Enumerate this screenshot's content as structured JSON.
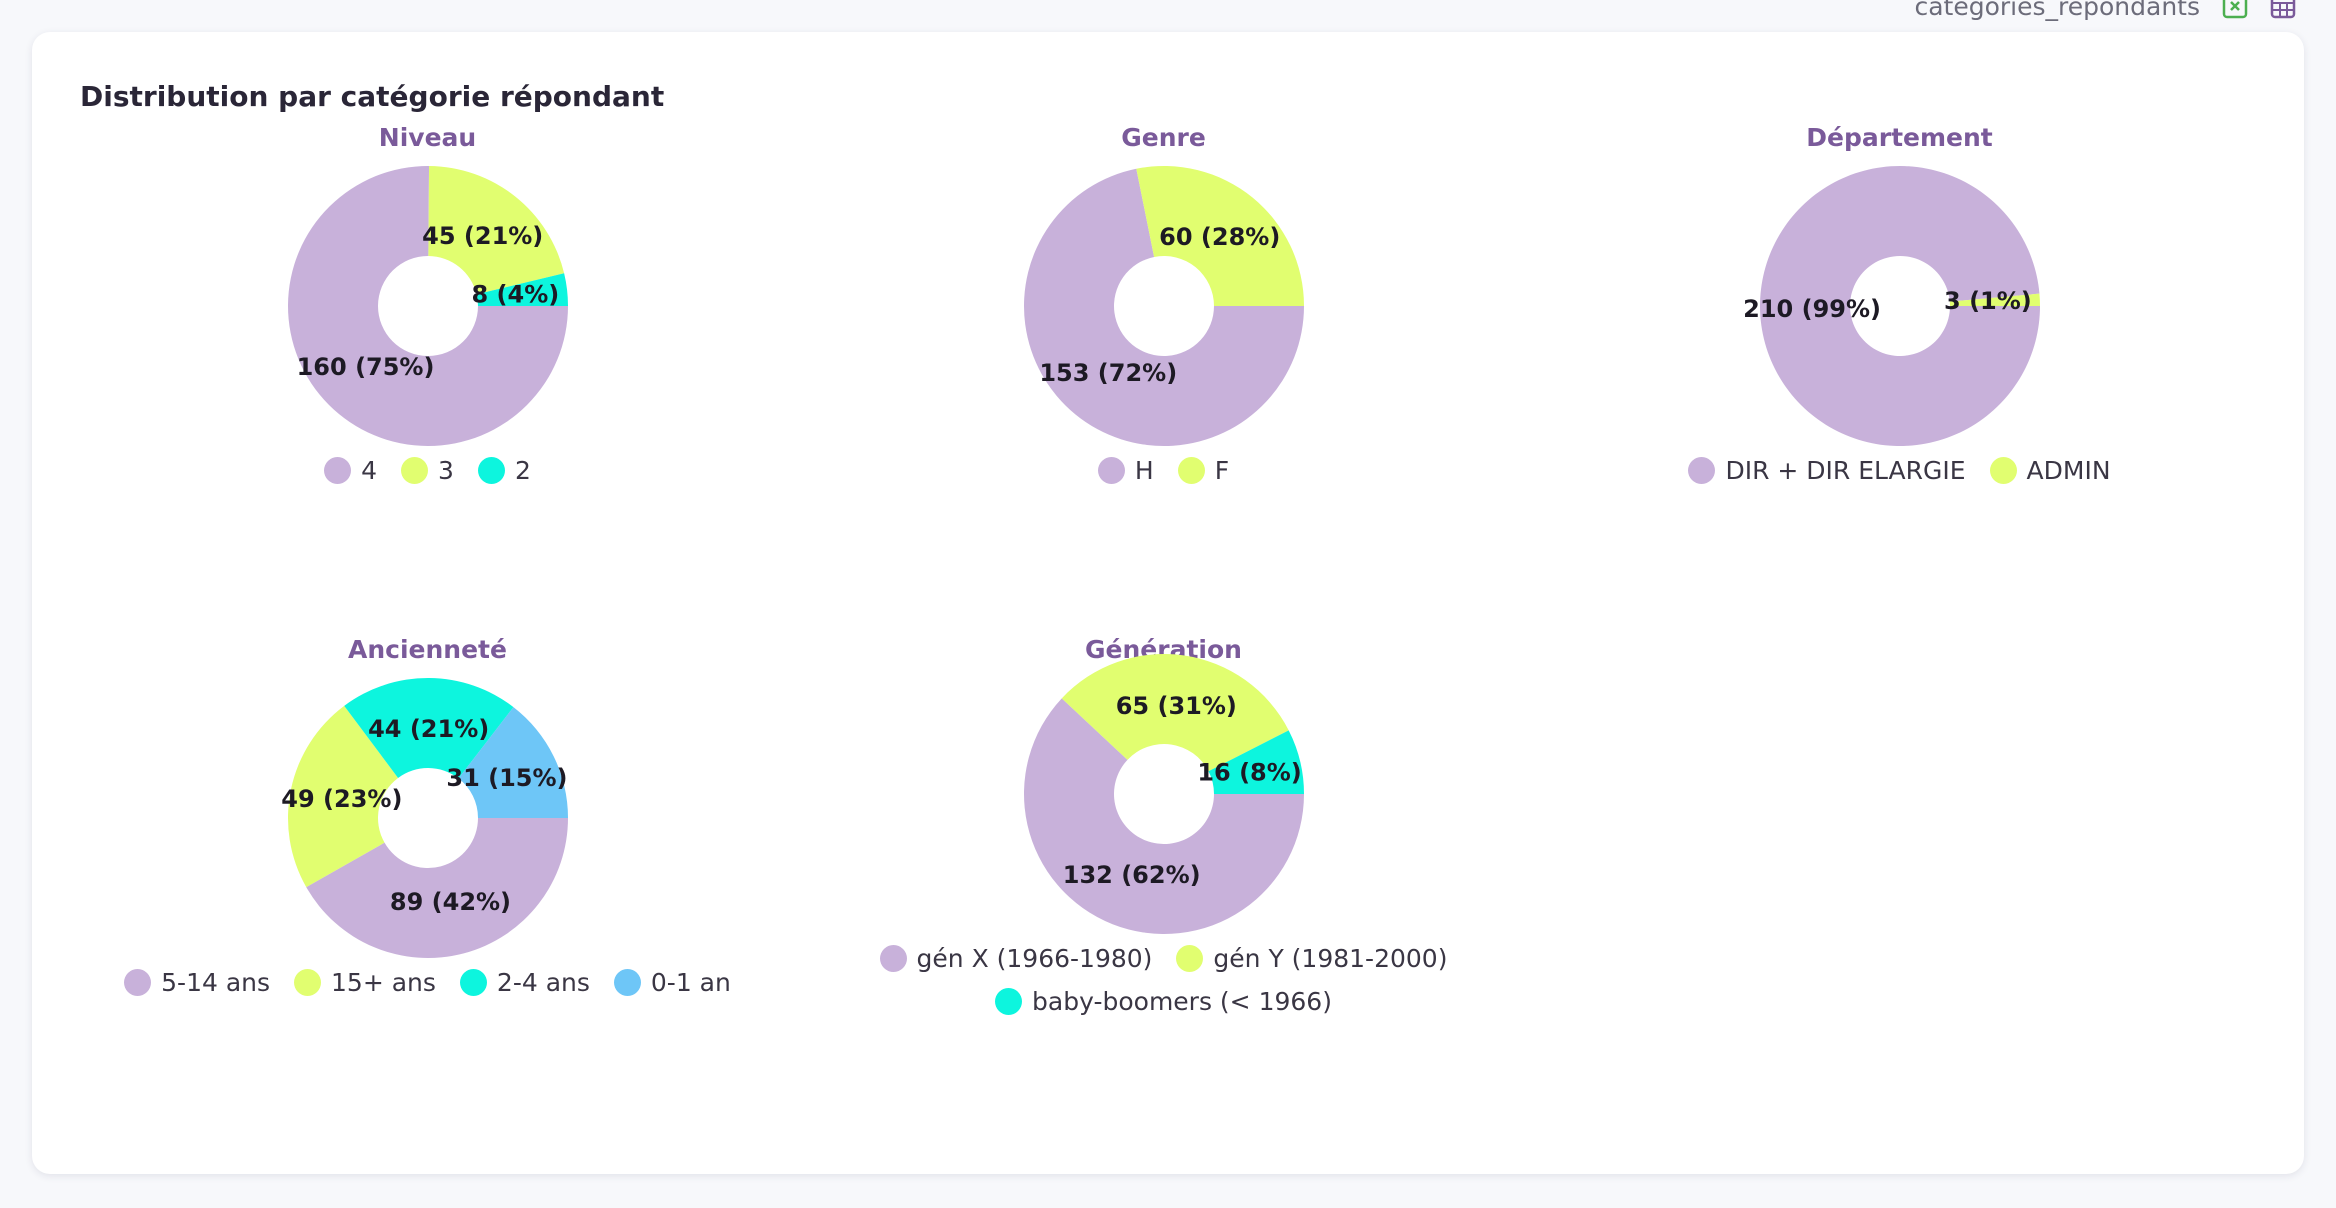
{
  "header": {
    "filename": "catégories_répondants"
  },
  "card": {
    "title": "Distribution par catégorie répondant"
  },
  "colors": {
    "lavender": "#c8b1da",
    "lime": "#e1fe70",
    "cyan": "#0df5de",
    "sky": "#6ec6f7"
  },
  "chart_data": [
    {
      "type": "pie",
      "title": "Niveau",
      "categories": [
        "4",
        "3",
        "2"
      ],
      "values": [
        160,
        45,
        8
      ],
      "labels": [
        "160 (75%)",
        "45 (21%)",
        "8 (4%)"
      ],
      "colors": [
        "#c8b1da",
        "#e1fe70",
        "#0df5de"
      ],
      "legend": "bottom"
    },
    {
      "type": "pie",
      "title": "Genre",
      "categories": [
        "H",
        "F"
      ],
      "values": [
        153,
        60
      ],
      "labels": [
        "153 (72%)",
        "60 (28%)"
      ],
      "colors": [
        "#c8b1da",
        "#e1fe70"
      ],
      "legend": "bottom"
    },
    {
      "type": "pie",
      "title": "Département",
      "categories": [
        "DIR + DIR ELARGIE",
        "ADMIN"
      ],
      "values": [
        210,
        3
      ],
      "labels": [
        "210 (99%)",
        "3 (1%)"
      ],
      "colors": [
        "#c8b1da",
        "#e1fe70"
      ],
      "legend": "bottom"
    },
    {
      "type": "pie",
      "title": "Ancienneté",
      "categories": [
        "5-14 ans",
        "15+ ans",
        "2-4 ans",
        "0-1 an"
      ],
      "values": [
        89,
        49,
        44,
        31
      ],
      "labels": [
        "89 (42%)",
        "49 (23%)",
        "44 (21%)",
        "31 (15%)"
      ],
      "colors": [
        "#c8b1da",
        "#e1fe70",
        "#0df5de",
        "#6ec6f7"
      ],
      "legend": "bottom"
    },
    {
      "type": "pie",
      "title": "Génération",
      "categories": [
        "gén X (1966-1980)",
        "gén Y (1981-2000)",
        "baby-boomers (< 1966)"
      ],
      "values": [
        132,
        65,
        16
      ],
      "labels": [
        "132 (62%)",
        "65 (31%)",
        "16 (8%)"
      ],
      "colors": [
        "#c8b1da",
        "#e1fe70",
        "#0df5de"
      ],
      "legend": "bottom"
    }
  ]
}
